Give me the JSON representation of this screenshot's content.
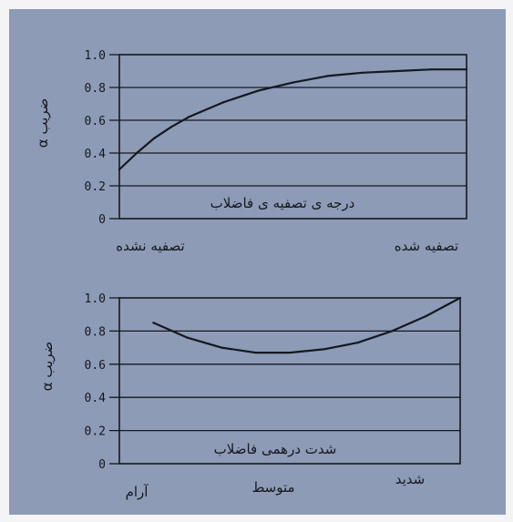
{
  "colors": {
    "paper": "#8e9bb6",
    "ink": "#141820"
  },
  "chart_data": [
    {
      "type": "line",
      "title": "درجه ی تصفیه ی فاضلاب",
      "ylabel": "ضریب α",
      "xlabel": "",
      "x_tick_labels": [
        "تصفیه نشده",
        "تصفیه شده"
      ],
      "y_tick_labels": [
        "1.0",
        "0.8",
        "0.6",
        "0.4",
        "0.2",
        "0"
      ],
      "ylim": [
        0,
        1.0
      ],
      "xlim": [
        0,
        1
      ],
      "grid": true,
      "series": [
        {
          "x": [
            0.0,
            0.05,
            0.1,
            0.15,
            0.2,
            0.3,
            0.4,
            0.5,
            0.6,
            0.7,
            0.8,
            0.9,
            1.0
          ],
          "values": [
            0.3,
            0.4,
            0.49,
            0.56,
            0.62,
            0.71,
            0.78,
            0.83,
            0.87,
            0.89,
            0.9,
            0.91,
            0.91
          ]
        }
      ]
    },
    {
      "type": "line",
      "title": "شدت درهمی فاضلاب",
      "ylabel": "ضریب α",
      "xlabel": "",
      "x_tick_labels": [
        "آرام",
        "متوسط",
        "شدید"
      ],
      "y_tick_labels": [
        "1.0",
        "0.8",
        "0.6",
        "0.4",
        "0.2",
        "0"
      ],
      "ylim": [
        0,
        1.0
      ],
      "xlim": [
        0,
        1
      ],
      "grid": true,
      "series": [
        {
          "x": [
            0.1,
            0.2,
            0.3,
            0.4,
            0.5,
            0.6,
            0.7,
            0.8,
            0.9,
            1.0
          ],
          "values": [
            0.85,
            0.76,
            0.7,
            0.67,
            0.67,
            0.69,
            0.73,
            0.8,
            0.89,
            1.0
          ]
        }
      ]
    }
  ]
}
